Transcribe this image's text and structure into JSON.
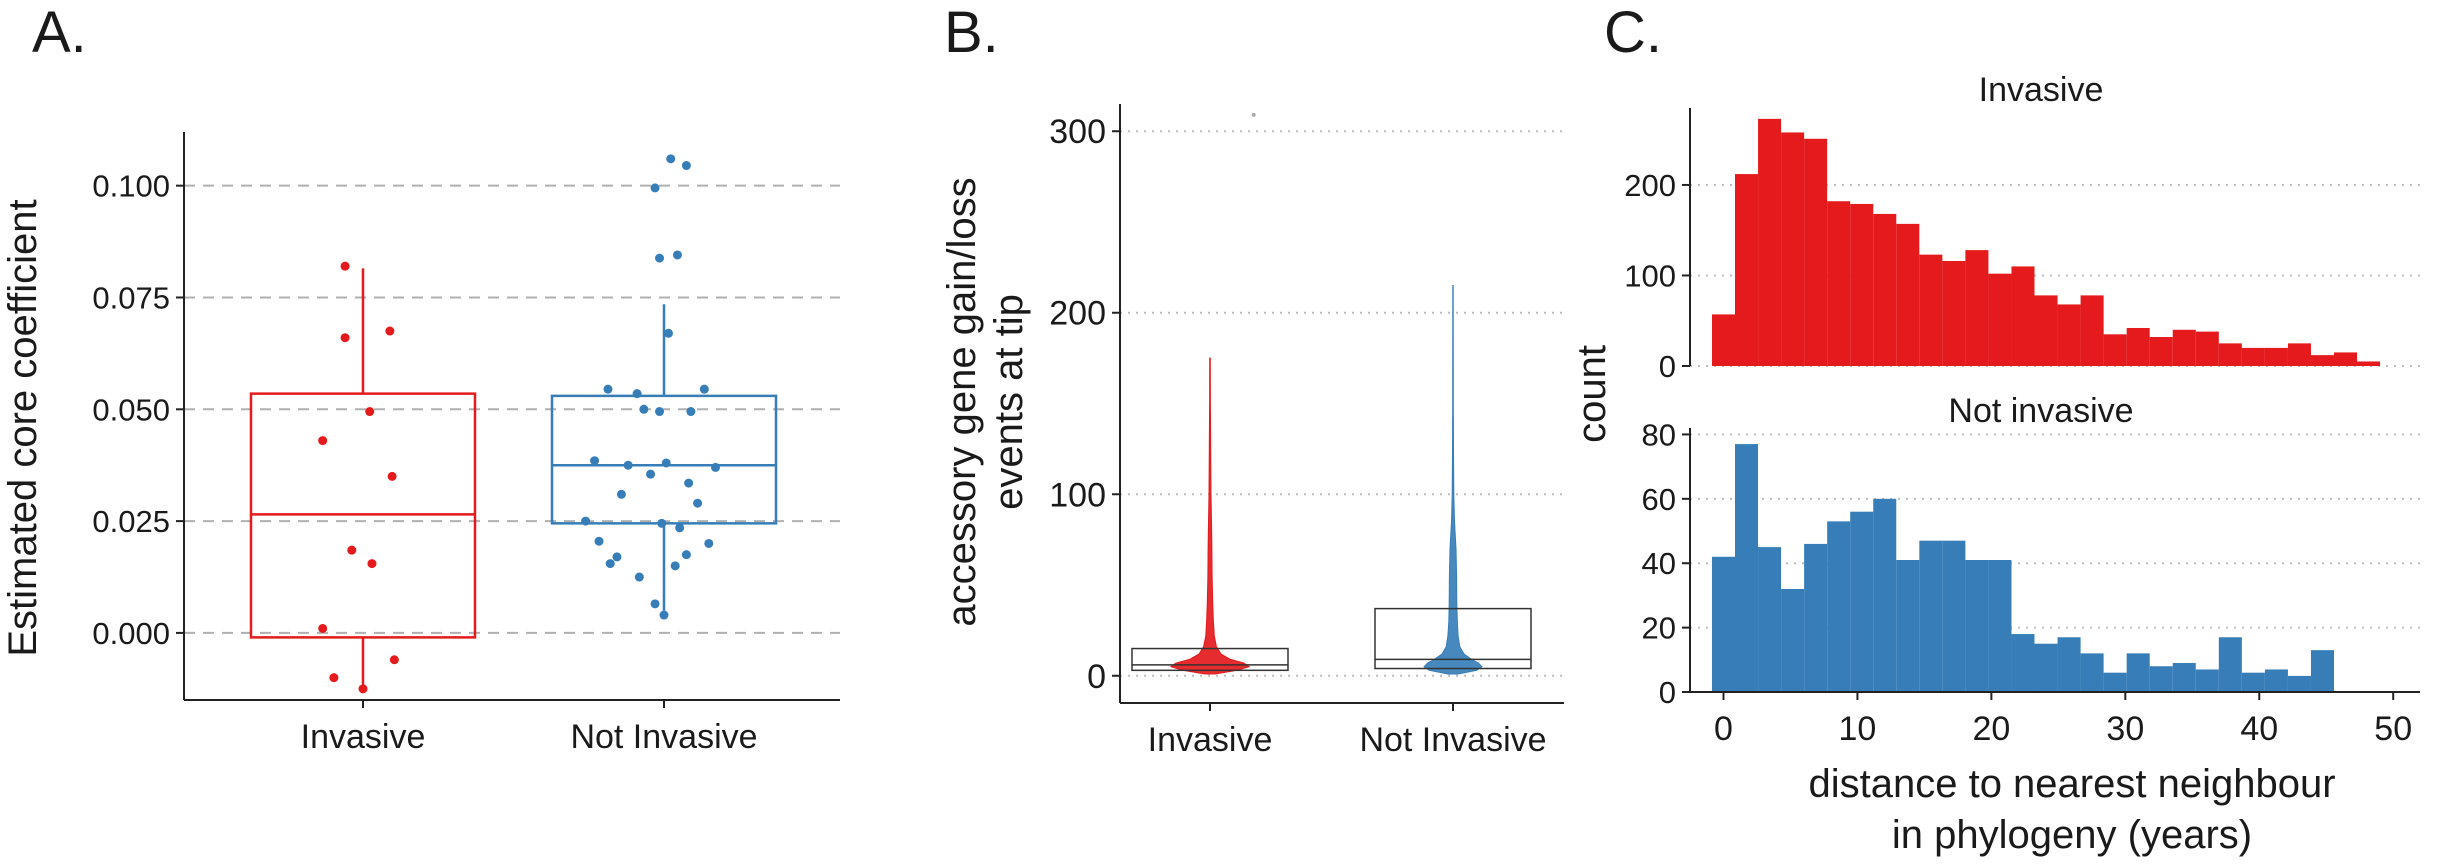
{
  "panels": {
    "a": {
      "letter": "A."
    },
    "b": {
      "letter": "B."
    },
    "c": {
      "letter": "C."
    }
  },
  "chart_data": [
    {
      "panel": "A.",
      "type": "box",
      "ylabel": "Estimated core coefficient",
      "xlabel": "",
      "categories": [
        "Invasive",
        "Not Invasive"
      ],
      "ylim": [
        -0.015,
        0.112
      ],
      "yticks": [
        0.0,
        0.025,
        0.05,
        0.075,
        0.1
      ],
      "ytick_labels": [
        "0.000",
        "0.025",
        "0.050",
        "0.075",
        "0.100"
      ],
      "grid": "horizontal dashed",
      "colors": {
        "Invasive": "#e41a1c",
        "Not Invasive": "#377eb8"
      },
      "boxes": [
        {
          "category": "Invasive",
          "q1": -0.001,
          "median": 0.0265,
          "q3": 0.0535,
          "whisker_low": -0.012,
          "whisker_high": 0.0815
        },
        {
          "category": "Not Invasive",
          "q1": 0.0245,
          "median": 0.0375,
          "q3": 0.053,
          "whisker_low": 0.005,
          "whisker_high": 0.0735
        }
      ],
      "points": [
        {
          "category": "Invasive",
          "jitter": -0.08,
          "y": 0.082
        },
        {
          "category": "Invasive",
          "jitter": -0.08,
          "y": 0.066
        },
        {
          "category": "Invasive",
          "jitter": 0.12,
          "y": 0.0675
        },
        {
          "category": "Invasive",
          "jitter": 0.03,
          "y": 0.0495
        },
        {
          "category": "Invasive",
          "jitter": -0.18,
          "y": 0.043
        },
        {
          "category": "Invasive",
          "jitter": 0.13,
          "y": 0.035
        },
        {
          "category": "Invasive",
          "jitter": -0.05,
          "y": 0.0185
        },
        {
          "category": "Invasive",
          "jitter": 0.04,
          "y": 0.0155
        },
        {
          "category": "Invasive",
          "jitter": -0.18,
          "y": 0.001
        },
        {
          "category": "Invasive",
          "jitter": 0.14,
          "y": -0.006
        },
        {
          "category": "Invasive",
          "jitter": -0.13,
          "y": -0.01
        },
        {
          "category": "Invasive",
          "jitter": 0.0,
          "y": -0.0125
        },
        {
          "category": "Not Invasive",
          "jitter": 0.03,
          "y": 0.106
        },
        {
          "category": "Not Invasive",
          "jitter": 0.1,
          "y": 0.1045
        },
        {
          "category": "Not Invasive",
          "jitter": -0.04,
          "y": 0.0995
        },
        {
          "category": "Not Invasive",
          "jitter": -0.02,
          "y": 0.0838
        },
        {
          "category": "Not Invasive",
          "jitter": 0.06,
          "y": 0.0845
        },
        {
          "category": "Not Invasive",
          "jitter": 0.02,
          "y": 0.067
        },
        {
          "category": "Not Invasive",
          "jitter": -0.25,
          "y": 0.0545
        },
        {
          "category": "Not Invasive",
          "jitter": -0.12,
          "y": 0.0535
        },
        {
          "category": "Not Invasive",
          "jitter": 0.18,
          "y": 0.0545
        },
        {
          "category": "Not Invasive",
          "jitter": -0.09,
          "y": 0.05
        },
        {
          "category": "Not Invasive",
          "jitter": -0.02,
          "y": 0.0495
        },
        {
          "category": "Not Invasive",
          "jitter": 0.12,
          "y": 0.0495
        },
        {
          "category": "Not Invasive",
          "jitter": -0.31,
          "y": 0.0385
        },
        {
          "category": "Not Invasive",
          "jitter": -0.16,
          "y": 0.0375
        },
        {
          "category": "Not Invasive",
          "jitter": 0.01,
          "y": 0.038
        },
        {
          "category": "Not Invasive",
          "jitter": 0.23,
          "y": 0.037
        },
        {
          "category": "Not Invasive",
          "jitter": -0.06,
          "y": 0.0355
        },
        {
          "category": "Not Invasive",
          "jitter": 0.11,
          "y": 0.0335
        },
        {
          "category": "Not Invasive",
          "jitter": -0.19,
          "y": 0.031
        },
        {
          "category": "Not Invasive",
          "jitter": 0.15,
          "y": 0.029
        },
        {
          "category": "Not Invasive",
          "jitter": -0.35,
          "y": 0.025
        },
        {
          "category": "Not Invasive",
          "jitter": -0.01,
          "y": 0.0245
        },
        {
          "category": "Not Invasive",
          "jitter": 0.07,
          "y": 0.0235
        },
        {
          "category": "Not Invasive",
          "jitter": -0.29,
          "y": 0.0205
        },
        {
          "category": "Not Invasive",
          "jitter": 0.2,
          "y": 0.02
        },
        {
          "category": "Not Invasive",
          "jitter": -0.21,
          "y": 0.017
        },
        {
          "category": "Not Invasive",
          "jitter": 0.1,
          "y": 0.0175
        },
        {
          "category": "Not Invasive",
          "jitter": -0.24,
          "y": 0.0155
        },
        {
          "category": "Not Invasive",
          "jitter": -0.11,
          "y": 0.0125
        },
        {
          "category": "Not Invasive",
          "jitter": 0.05,
          "y": 0.015
        },
        {
          "category": "Not Invasive",
          "jitter": -0.04,
          "y": 0.0065
        },
        {
          "category": "Not Invasive",
          "jitter": 0.0,
          "y": 0.004
        }
      ]
    },
    {
      "panel": "B.",
      "type": "box",
      "ylabel": "accessory gene gain/loss events at tip",
      "ylabel_lines": [
        "accessory gene gain/loss",
        "events at tip"
      ],
      "xlabel": "",
      "categories": [
        "Invasive",
        "Not Invasive"
      ],
      "ylim": [
        -15,
        315
      ],
      "yticks": [
        0,
        100,
        200,
        300
      ],
      "ytick_labels": [
        "0",
        "100",
        "200",
        "300"
      ],
      "grid": "horizontal dotted",
      "colors": {
        "Invasive": "#e41a1c",
        "Not Invasive": "#377eb8"
      },
      "boxes": [
        {
          "category": "Invasive",
          "q1": 3,
          "median": 6,
          "q3": 15
        },
        {
          "category": "Not Invasive",
          "q1": 4,
          "median": 9,
          "q3": 37
        }
      ],
      "violins": [
        {
          "category": "Invasive",
          "max": 175,
          "profile": [
            [
              1,
              0.06
            ],
            [
              3,
              0.32
            ],
            [
              5,
              0.46
            ],
            [
              7,
              0.4
            ],
            [
              9,
              0.24
            ],
            [
              12,
              0.13
            ],
            [
              16,
              0.075
            ],
            [
              22,
              0.05
            ],
            [
              30,
              0.04
            ],
            [
              40,
              0.032
            ],
            [
              55,
              0.025
            ],
            [
              70,
              0.022
            ],
            [
              85,
              0.018
            ],
            [
              100,
              0.012
            ],
            [
              125,
              0.008
            ],
            [
              150,
              0.005
            ],
            [
              175,
              0.003
            ]
          ]
        },
        {
          "category": "Not Invasive",
          "max": 215,
          "profile": [
            [
              1,
              0.06
            ],
            [
              3,
              0.28
            ],
            [
              5,
              0.34
            ],
            [
              7,
              0.3
            ],
            [
              9,
              0.22
            ],
            [
              12,
              0.13
            ],
            [
              16,
              0.08
            ],
            [
              22,
              0.06
            ],
            [
              30,
              0.05
            ],
            [
              40,
              0.045
            ],
            [
              55,
              0.042
            ],
            [
              70,
              0.035
            ],
            [
              85,
              0.018
            ],
            [
              100,
              0.01
            ],
            [
              125,
              0.006
            ],
            [
              150,
              0.004
            ],
            [
              170,
              0.003
            ],
            [
              215,
              0.002
            ]
          ]
        }
      ],
      "outliers": [
        {
          "category": "Invasive",
          "jitter": 0.28,
          "y": 309
        }
      ]
    },
    {
      "panel": "C.",
      "type": "histogram",
      "xlabel": "distance to nearest neighbour in phylogeny (years)",
      "xlabel_lines": [
        "distance to nearest neighbour",
        "in phylogeny (years)"
      ],
      "ylabel": "count",
      "xlim": [
        -2.5,
        52
      ],
      "xticks": [
        0,
        10,
        20,
        30,
        40,
        50
      ],
      "bin_width": 1.72,
      "bin_start": -0.86,
      "grid": "horizontal dotted",
      "facets": [
        {
          "title": "Invasive",
          "color": "#e41a1c",
          "ylim": [
            0,
            285
          ],
          "yticks": [
            0,
            100,
            200
          ],
          "counts": [
            57,
            212,
            273,
            258,
            251,
            182,
            179,
            168,
            157,
            123,
            116,
            128,
            102,
            110,
            78,
            68,
            78,
            35,
            42,
            32,
            40,
            38,
            25,
            20,
            20,
            25,
            12,
            15,
            5
          ]
        },
        {
          "title": "Not invasive",
          "color": "#377eb8",
          "ylim": [
            0,
            82
          ],
          "yticks": [
            0,
            20,
            40,
            60,
            80
          ],
          "counts": [
            42,
            77,
            45,
            32,
            46,
            53,
            56,
            60,
            41,
            47,
            47,
            41,
            41,
            18,
            15,
            17,
            12,
            6,
            12,
            8,
            9,
            7,
            17,
            6,
            7,
            5,
            13
          ]
        }
      ]
    }
  ]
}
